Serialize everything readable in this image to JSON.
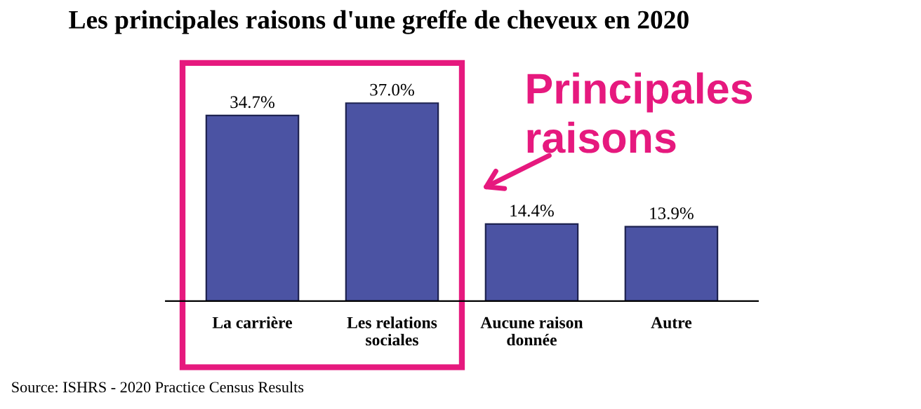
{
  "chart_data": {
    "type": "bar",
    "title": "Les principales raisons d'une greffe de cheveux en 2020",
    "categories": [
      "La carrière",
      "Les relations\nsociales",
      "Aucune raison\ndonnée",
      "Autre"
    ],
    "values": [
      34.7,
      37.0,
      14.4,
      13.9
    ],
    "value_labels": [
      "34.7%",
      "37.0%",
      "14.4%",
      "13.9%"
    ],
    "color": "#4b53a3",
    "annotations": [
      "Principales\nraisons",
      "Source: ISHRS - 2020 Practice Census Results"
    ],
    "grid": false,
    "legend": false
  }
}
